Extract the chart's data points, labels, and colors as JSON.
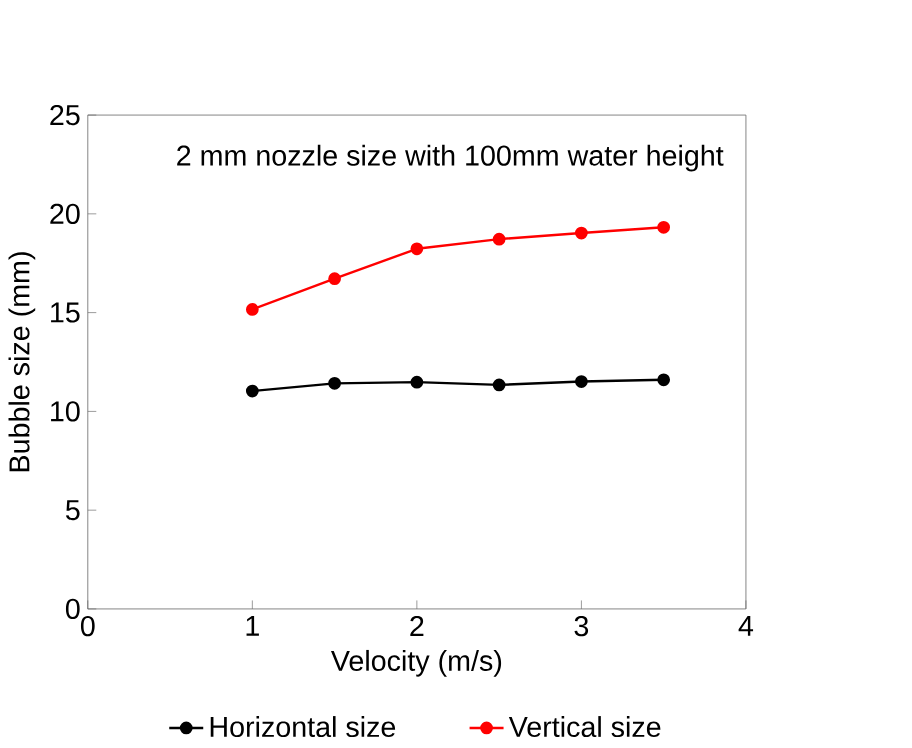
{
  "chart_data": {
    "type": "line",
    "title": "2 mm nozzle size with 100mm water height",
    "xlabel": "Velocity (m/s)",
    "ylabel": "Bubble size (mm)",
    "x": [
      1,
      1.5,
      2,
      2.5,
      3,
      3.5
    ],
    "series": [
      {
        "name": "Horizontal size",
        "color": "#000000",
        "values": [
          11.03,
          11.42,
          11.48,
          11.34,
          11.51,
          11.6
        ]
      },
      {
        "name": "Vertical size",
        "color": "#ff0000",
        "values": [
          15.16,
          16.72,
          18.23,
          18.72,
          19.03,
          19.32
        ]
      }
    ],
    "xlim": [
      0,
      4
    ],
    "xticks": [
      0,
      1,
      2,
      3,
      4
    ],
    "ylim": [
      0,
      25
    ],
    "yticks": [
      0,
      5,
      10,
      15,
      20,
      25
    ],
    "grid": false,
    "legend": "bottom",
    "marker": "circle",
    "line_style": "solid"
  }
}
